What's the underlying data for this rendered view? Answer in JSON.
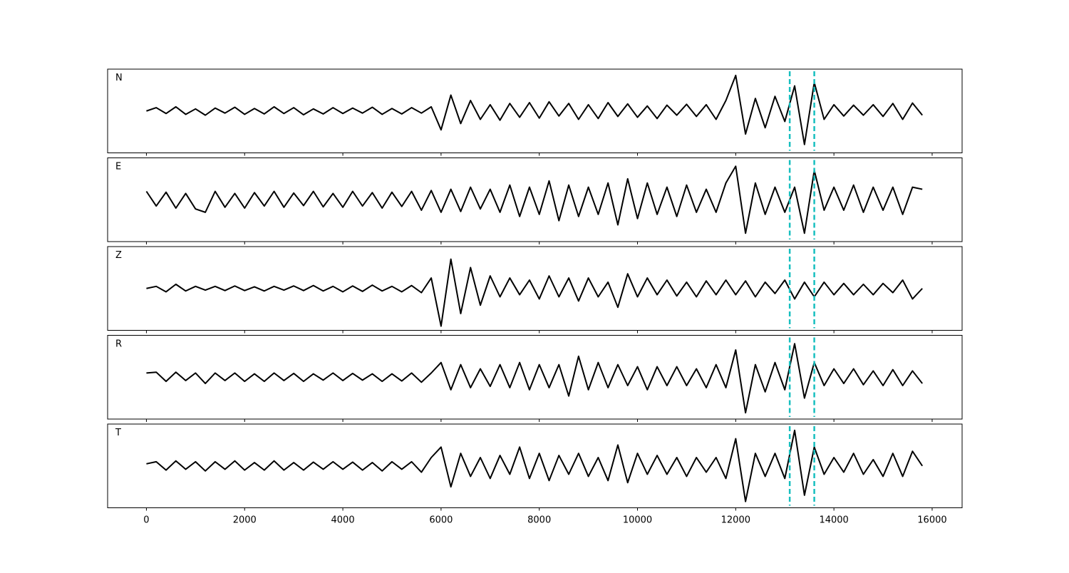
{
  "chart_data": {
    "type": "line",
    "subplots": true,
    "color": "#000000",
    "x": [
      0,
      200,
      400,
      600,
      800,
      1000,
      1200,
      1400,
      1600,
      1800,
      2000,
      2200,
      2400,
      2600,
      2800,
      3000,
      3200,
      3400,
      3600,
      3800,
      4000,
      4200,
      4400,
      4600,
      4800,
      5000,
      5200,
      5400,
      5600,
      5800,
      6000,
      6200,
      6400,
      6600,
      6800,
      7000,
      7200,
      7400,
      7600,
      7800,
      8000,
      8200,
      8400,
      8600,
      8800,
      9000,
      9200,
      9400,
      9600,
      9800,
      10000,
      10200,
      10400,
      10600,
      10800,
      11000,
      11200,
      11400,
      11600,
      11800,
      12000,
      12200,
      12400,
      12600,
      12800,
      13000,
      13200,
      13400,
      13600,
      13800,
      14000,
      14200,
      14400,
      14600,
      14800,
      15000,
      15200,
      15400,
      15600,
      15800
    ],
    "series": [
      {
        "name": "N",
        "values": [
          0,
          0.08,
          -0.06,
          0.1,
          -0.08,
          0.05,
          -0.1,
          0.07,
          -0.05,
          0.09,
          -0.08,
          0.06,
          -0.07,
          0.1,
          -0.06,
          0.08,
          -0.09,
          0.05,
          -0.07,
          0.08,
          -0.06,
          0.07,
          -0.05,
          0.09,
          -0.08,
          0.06,
          -0.07,
          0.08,
          -0.05,
          0.1,
          -0.45,
          0.38,
          -0.3,
          0.25,
          -0.2,
          0.15,
          -0.22,
          0.18,
          -0.15,
          0.2,
          -0.17,
          0.22,
          -0.12,
          0.18,
          -0.2,
          0.15,
          -0.18,
          0.2,
          -0.13,
          0.17,
          -0.15,
          0.12,
          -0.18,
          0.14,
          -0.1,
          0.16,
          -0.13,
          0.15,
          -0.2,
          0.25,
          0.85,
          -0.55,
          0.3,
          -0.4,
          0.35,
          -0.25,
          0.6,
          -0.8,
          0.68,
          -0.2,
          0.15,
          -0.12,
          0.14,
          -0.1,
          0.15,
          -0.13,
          0.18,
          -0.2,
          0.19,
          -0.1
        ]
      },
      {
        "name": "E",
        "values": [
          0.2,
          -0.15,
          0.18,
          -0.2,
          0.15,
          -0.22,
          -0.3,
          0.2,
          -0.18,
          0.15,
          -0.2,
          0.17,
          -0.15,
          0.2,
          -0.18,
          0.16,
          -0.14,
          0.2,
          -0.17,
          0.15,
          -0.18,
          0.2,
          -0.15,
          0.17,
          -0.2,
          0.18,
          -0.16,
          0.2,
          -0.25,
          0.22,
          -0.3,
          0.25,
          -0.28,
          0.3,
          -0.22,
          0.25,
          -0.3,
          0.35,
          -0.4,
          0.3,
          -0.35,
          0.45,
          -0.5,
          0.35,
          -0.4,
          0.3,
          -0.35,
          0.4,
          -0.6,
          0.5,
          -0.45,
          0.4,
          -0.35,
          0.3,
          -0.4,
          0.35,
          -0.3,
          0.25,
          -0.3,
          0.4,
          0.8,
          -0.8,
          0.4,
          -0.35,
          0.3,
          -0.3,
          0.3,
          -0.8,
          0.7,
          -0.25,
          0.3,
          -0.25,
          0.35,
          -0.3,
          0.3,
          -0.25,
          0.3,
          -0.35,
          0.3,
          0.25
        ]
      },
      {
        "name": "Z",
        "values": [
          0,
          0.05,
          -0.08,
          0.1,
          -0.06,
          0.05,
          -0.04,
          0.05,
          -0.05,
          0.06,
          -0.05,
          0.04,
          -0.06,
          0.05,
          -0.04,
          0.06,
          -0.05,
          0.07,
          -0.06,
          0.05,
          -0.08,
          0.06,
          -0.07,
          0.08,
          -0.06,
          0.05,
          -0.08,
          0.07,
          -0.1,
          0.25,
          -0.9,
          0.7,
          -0.6,
          0.5,
          -0.4,
          0.3,
          -0.2,
          0.25,
          -0.15,
          0.2,
          -0.25,
          0.3,
          -0.2,
          0.25,
          -0.3,
          0.25,
          -0.2,
          0.15,
          -0.45,
          0.35,
          -0.2,
          0.25,
          -0.15,
          0.2,
          -0.18,
          0.15,
          -0.2,
          0.18,
          -0.15,
          0.2,
          -0.15,
          0.18,
          -0.2,
          0.15,
          -0.12,
          0.2,
          -0.25,
          0.15,
          -0.2,
          0.15,
          -0.15,
          0.12,
          -0.15,
          0.1,
          -0.15,
          0.12,
          -0.1,
          0.2,
          -0.25,
          0
        ]
      },
      {
        "name": "R",
        "values": [
          0.1,
          0.12,
          -0.1,
          0.12,
          -0.08,
          0.1,
          -0.15,
          0.1,
          -0.08,
          0.1,
          -0.1,
          0.08,
          -0.1,
          0.1,
          -0.08,
          0.09,
          -0.1,
          0.08,
          -0.07,
          0.1,
          -0.08,
          0.09,
          -0.07,
          0.08,
          -0.1,
          0.08,
          -0.09,
          0.1,
          -0.12,
          0.1,
          0.35,
          -0.3,
          0.3,
          -0.25,
          0.2,
          -0.22,
          0.3,
          -0.25,
          0.35,
          -0.3,
          0.3,
          -0.25,
          0.3,
          -0.45,
          0.5,
          -0.3,
          0.35,
          -0.25,
          0.3,
          -0.2,
          0.25,
          -0.3,
          0.25,
          -0.2,
          0.25,
          -0.2,
          0.2,
          -0.25,
          0.3,
          -0.25,
          0.65,
          -0.85,
          0.3,
          -0.35,
          0.35,
          -0.3,
          0.8,
          -0.5,
          0.35,
          -0.2,
          0.2,
          -0.15,
          0.2,
          -0.18,
          0.15,
          -0.2,
          0.18,
          -0.2,
          0.15,
          -0.15
        ]
      },
      {
        "name": "T",
        "values": [
          0.05,
          0.1,
          -0.1,
          0.12,
          -0.08,
          0.1,
          -0.12,
          0.1,
          -0.08,
          0.12,
          -0.1,
          0.08,
          -0.1,
          0.12,
          -0.1,
          0.08,
          -0.1,
          0.09,
          -0.08,
          0.1,
          -0.08,
          0.09,
          -0.1,
          0.08,
          -0.12,
          0.1,
          -0.08,
          0.1,
          -0.15,
          0.2,
          0.45,
          -0.5,
          0.3,
          -0.25,
          0.2,
          -0.3,
          0.25,
          -0.2,
          0.45,
          -0.3,
          0.3,
          -0.35,
          0.25,
          -0.2,
          0.3,
          -0.25,
          0.2,
          -0.35,
          0.5,
          -0.4,
          0.3,
          -0.2,
          0.25,
          -0.2,
          0.2,
          -0.25,
          0.2,
          -0.15,
          0.2,
          -0.3,
          0.65,
          -0.85,
          0.3,
          -0.25,
          0.3,
          -0.3,
          0.85,
          -0.7,
          0.45,
          -0.2,
          0.2,
          -0.15,
          0.3,
          -0.2,
          0.15,
          -0.25,
          0.3,
          -0.25,
          0.35,
          0
        ]
      }
    ],
    "xlim": [
      -790,
      16610
    ],
    "ylim": [
      -1,
      1
    ],
    "xticks": [
      0,
      2000,
      4000,
      6000,
      8000,
      10000,
      12000,
      14000,
      16000
    ],
    "vlines": [
      13100,
      13600
    ],
    "vline_color": "#17bfbf"
  }
}
